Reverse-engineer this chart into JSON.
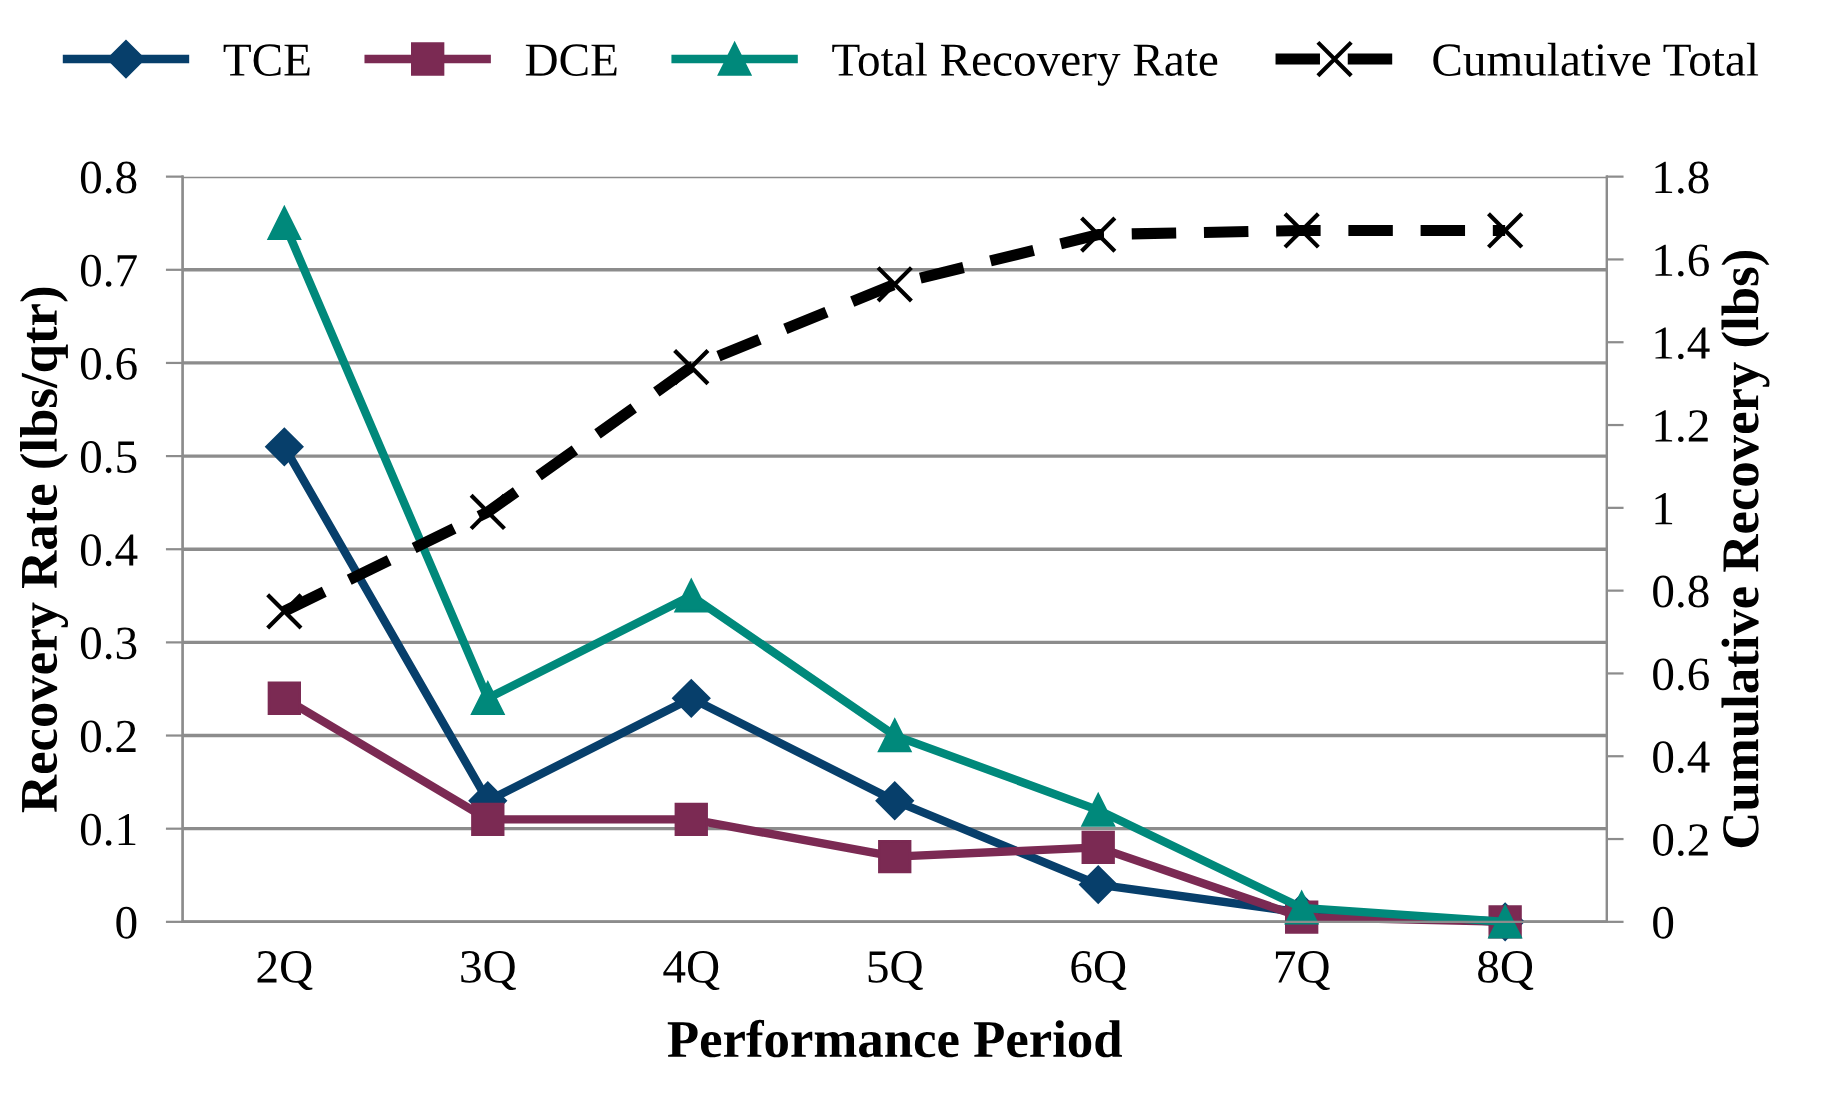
{
  "chart_data": {
    "type": "line",
    "xlabel": "Performance Period",
    "ylabel": "Recovery Rate (lbs/qtr)",
    "y2label": "Cumulative Recovery (lbs)",
    "categories": [
      "2Q",
      "3Q",
      "4Q",
      "5Q",
      "6Q",
      "7Q",
      "8Q"
    ],
    "series": [
      {
        "name": "TCE",
        "color": "#073f6b",
        "marker": "diamond",
        "values": [
          0.51,
          0.13,
          0.24,
          0.13,
          0.04,
          0.01,
          0
        ]
      },
      {
        "name": "DCE",
        "color": "#7b2a53",
        "marker": "square",
        "values": [
          0.24,
          0.11,
          0.11,
          0.07,
          0.08,
          0.005,
          0
        ]
      },
      {
        "name": "Total Recovery Rate",
        "color": "#00897b",
        "marker": "triangle",
        "values": [
          0.75,
          0.24,
          0.35,
          0.2,
          0.12,
          0.015,
          0
        ]
      },
      {
        "name": "Cumulative Total",
        "color": "#000000",
        "marker": "cross",
        "line_style": "dashed",
        "axis": "y2",
        "values": [
          0.75,
          0.99,
          1.34,
          1.54,
          1.66,
          1.67,
          1.67
        ]
      }
    ],
    "ylim": [
      0,
      0.8
    ],
    "yticks": [
      0,
      0.1,
      0.2,
      0.3,
      0.4,
      0.5,
      0.6,
      0.7,
      0.8
    ],
    "y2lim": [
      0,
      1.8
    ],
    "y2ticks": [
      0,
      0.2,
      0.4,
      0.6,
      0.8,
      1,
      1.2,
      1.4,
      1.6,
      1.8
    ],
    "grid": "y",
    "legend": "top"
  }
}
